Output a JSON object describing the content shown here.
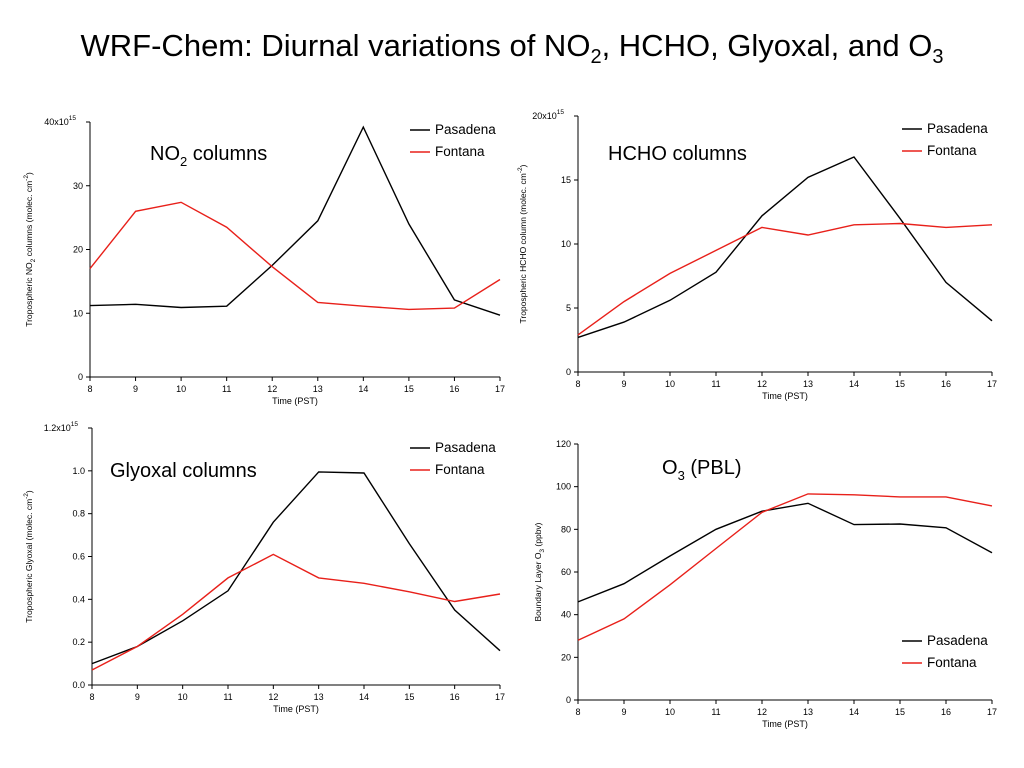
{
  "title": {
    "text": "WRF-Chem: Diurnal variations of NO",
    "sub1": "2",
    "text2": ", HCHO, Glyoxal, and O",
    "sub2": "3"
  },
  "chart_data": [
    {
      "type": "line",
      "id": "no2",
      "panel_label": "NO",
      "panel_label_sub": "2",
      "panel_label_rest": " columns",
      "xlabel": "Time (PST)",
      "ylabel": {
        "pre": "Tropospheric NO",
        "sub": "2",
        "mid": " columns (molec. cm",
        "sup": "-2",
        "post": ")"
      },
      "x": [
        8,
        9,
        10,
        11,
        12,
        13,
        14,
        15,
        16,
        17
      ],
      "xlim": [
        8,
        17
      ],
      "ylim": [
        0,
        40
      ],
      "yticks": [
        0,
        10,
        20,
        30,
        40
      ],
      "ytick_labels": [
        "0",
        "10",
        "20",
        "30",
        "40x10"
      ],
      "top_tick_exp": "15",
      "legend_position": "top-right",
      "series": [
        {
          "name": "Pasadena",
          "color": "#000000",
          "values": [
            11.2,
            11.4,
            10.9,
            11.1,
            17.5,
            24.5,
            39.2,
            24.0,
            12.1,
            9.7
          ]
        },
        {
          "name": "Fontana",
          "color": "#e8201a",
          "values": [
            17.0,
            26.0,
            27.4,
            23.5,
            17.3,
            11.7,
            11.1,
            10.6,
            10.8,
            15.3
          ]
        }
      ]
    },
    {
      "type": "line",
      "id": "hcho",
      "panel_label": "HCHO columns",
      "panel_label_sub": "",
      "panel_label_rest": "",
      "xlabel": "Time (PST)",
      "ylabel": {
        "pre": "Tropospheric HCHO column (molec. cm",
        "sub": "",
        "mid": "",
        "sup": "-2",
        "post": ")"
      },
      "x": [
        8,
        9,
        10,
        11,
        12,
        13,
        14,
        15,
        16,
        17
      ],
      "xlim": [
        8,
        17
      ],
      "ylim": [
        0,
        20
      ],
      "yticks": [
        0,
        5,
        10,
        15,
        20
      ],
      "ytick_labels": [
        "0",
        "5",
        "10",
        "15",
        "20x10"
      ],
      "top_tick_exp": "15",
      "legend_position": "top-right",
      "series": [
        {
          "name": "Pasadena",
          "color": "#000000",
          "values": [
            2.7,
            3.9,
            5.6,
            7.8,
            12.2,
            15.2,
            16.8,
            12.0,
            7.0,
            4.0
          ]
        },
        {
          "name": "Fontana",
          "color": "#e8201a",
          "values": [
            2.9,
            5.5,
            7.7,
            9.5,
            11.3,
            10.7,
            11.5,
            11.6,
            11.3,
            11.5
          ]
        }
      ]
    },
    {
      "type": "line",
      "id": "glyoxal",
      "panel_label": "Glyoxal columns",
      "panel_label_sub": "",
      "panel_label_rest": "",
      "xlabel": "Time (PST)",
      "ylabel": {
        "pre": "Tropospheric Glyoxal (molec. cm",
        "sub": "",
        "mid": "",
        "sup": "-2",
        "post": ")"
      },
      "x": [
        8,
        9,
        10,
        11,
        12,
        13,
        14,
        15,
        16,
        17
      ],
      "xlim": [
        8,
        17
      ],
      "ylim": [
        0,
        1.2
      ],
      "yticks": [
        0,
        0.2,
        0.4,
        0.6,
        0.8,
        1.0,
        1.2
      ],
      "ytick_labels": [
        "0.0",
        "0.2",
        "0.4",
        "0.6",
        "0.8",
        "1.0",
        "1.2x10"
      ],
      "top_tick_exp": "15",
      "legend_position": "top-right",
      "series": [
        {
          "name": "Pasadena",
          "color": "#000000",
          "values": [
            0.1,
            0.18,
            0.3,
            0.44,
            0.76,
            0.995,
            0.99,
            0.66,
            0.35,
            0.16
          ]
        },
        {
          "name": "Fontana",
          "color": "#e8201a",
          "values": [
            0.07,
            0.18,
            0.33,
            0.5,
            0.61,
            0.5,
            0.475,
            0.435,
            0.39,
            0.425
          ]
        }
      ]
    },
    {
      "type": "line",
      "id": "o3",
      "panel_label": "O",
      "panel_label_sub": "3",
      "panel_label_rest": " (PBL)",
      "xlabel": "Time (PST)",
      "ylabel": {
        "pre": "Boundary Layer O",
        "sub": "3",
        "mid": " (ppbv)",
        "sup": "",
        "post": ""
      },
      "x": [
        8,
        9,
        10,
        11,
        12,
        13,
        14,
        15,
        16,
        17
      ],
      "xlim": [
        8,
        17
      ],
      "ylim": [
        0,
        120
      ],
      "yticks": [
        0,
        20,
        40,
        60,
        80,
        100,
        120
      ],
      "ytick_labels": [
        "0",
        "20",
        "40",
        "60",
        "80",
        "100",
        "120"
      ],
      "top_tick_exp": "",
      "legend_position": "bottom-right",
      "series": [
        {
          "name": "Pasadena",
          "color": "#000000",
          "values": [
            46,
            54.5,
            67.5,
            80,
            88.5,
            92.2,
            82.2,
            82.5,
            80.7,
            69
          ]
        },
        {
          "name": "Fontana",
          "color": "#e8201a",
          "values": [
            28,
            38,
            54,
            71,
            88,
            96.6,
            96.2,
            95.2,
            95.2,
            91
          ]
        }
      ]
    }
  ]
}
